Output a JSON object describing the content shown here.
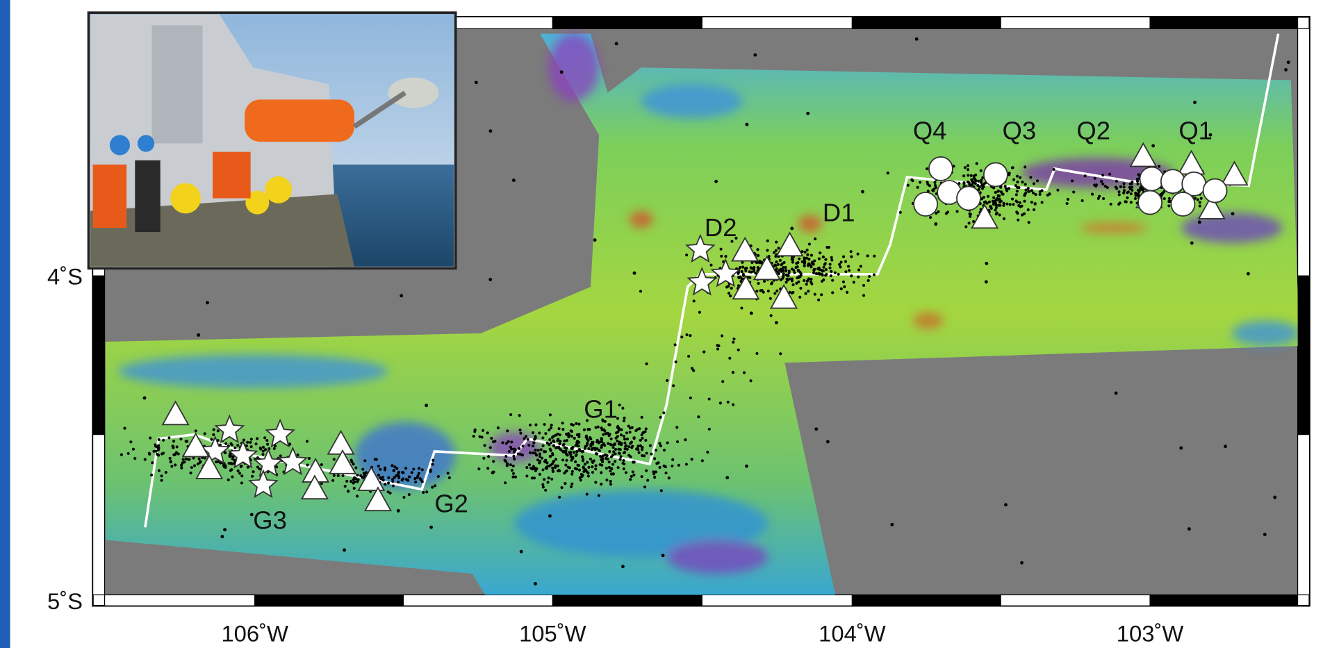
{
  "map": {
    "lat_labels": [
      "4˚S",
      "5˚S"
    ],
    "lon_labels": [
      "106˚W",
      "105˚W",
      "104˚W",
      "103˚W"
    ],
    "segment_labels": [
      "Q4",
      "Q3",
      "Q2",
      "Q1",
      "D2",
      "D1",
      "G1",
      "G2",
      "G3"
    ]
  }
}
